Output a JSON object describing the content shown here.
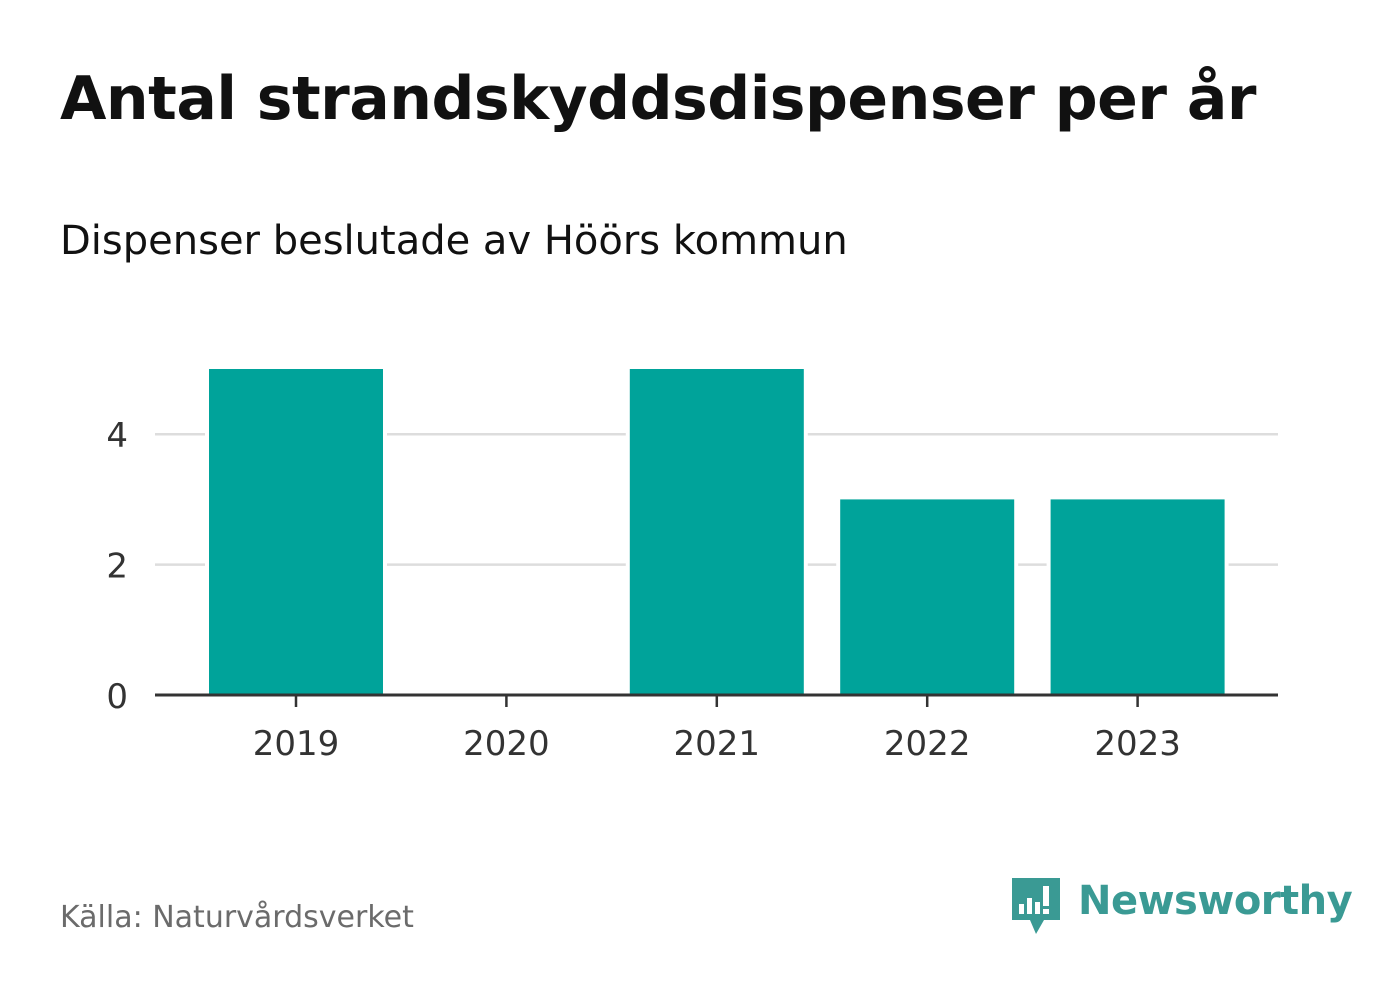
{
  "header": {
    "title": "Antal strandskyddsdispenser per år",
    "subtitle": "Dispenser beslutade av Höörs kommun"
  },
  "footer": {
    "source": "Källa: Naturvårdsverket",
    "brand": "Newsworthy",
    "brand_icon": "newsworthy-logo-icon"
  },
  "colors": {
    "bar": "#00a39a",
    "grid": "#dddddd",
    "axis": "#333333",
    "brand": "#3a9a94"
  },
  "chart_data": {
    "type": "bar",
    "title": "Antal strandskyddsdispenser per år",
    "subtitle": "Dispenser beslutade av Höörs kommun",
    "categories": [
      "2019",
      "2020",
      "2021",
      "2022",
      "2023"
    ],
    "values": [
      5,
      0,
      5,
      3,
      3
    ],
    "xlabel": "",
    "ylabel": "",
    "ylim": [
      0,
      5
    ],
    "yticks": [
      0,
      2,
      4
    ],
    "grid": true,
    "legend": "none"
  }
}
